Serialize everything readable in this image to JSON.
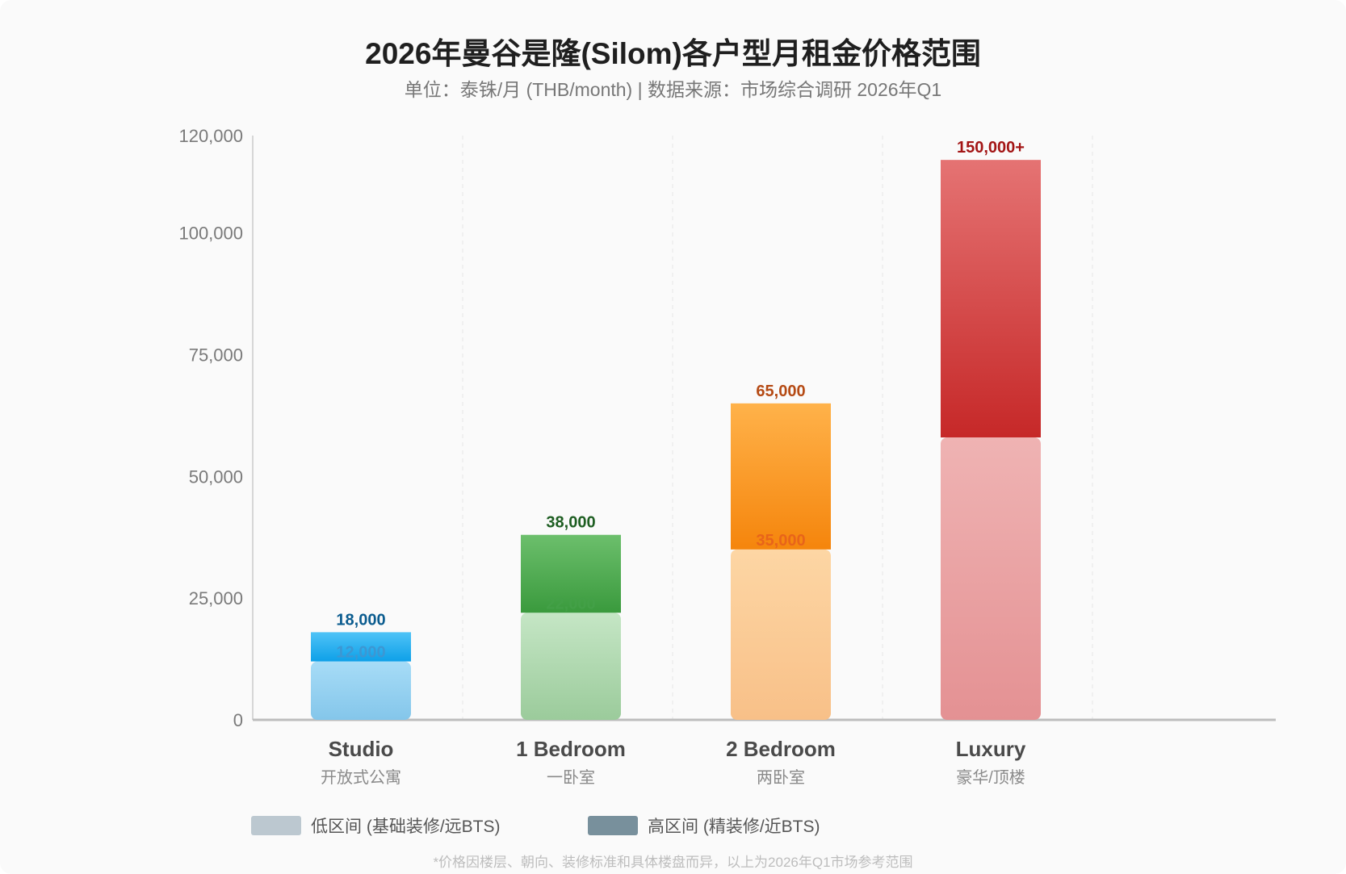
{
  "chart_data": {
    "type": "bar",
    "stacked_range": true,
    "title": "2026年曼谷是隆(Silom)各户型月租金价格范围",
    "subtitle": "单位：泰铢/月 (THB/month) | 数据来源：市场综合调研 2026年Q1",
    "xlabel": "",
    "ylabel": "",
    "ylim": [
      0,
      120000
    ],
    "yticks": [
      {
        "value": 0,
        "label": "0"
      },
      {
        "value": 25000,
        "label": "25,000"
      },
      {
        "value": 50000,
        "label": "50,000"
      },
      {
        "value": 75000,
        "label": "75,000"
      },
      {
        "value": 100000,
        "label": "100,000"
      },
      {
        "value": 120000,
        "label": "120,000"
      }
    ],
    "grid": "vertical-dashed",
    "categories": [
      {
        "name": "Studio",
        "sub": "开放式公寓",
        "low": 12000,
        "high": 18000,
        "low_label": "12,000",
        "high_label": "18,000",
        "colors": {
          "low_top": "#a7dcf7",
          "low_bottom": "#84c6ea",
          "high_top": "#4fc3f7",
          "high_bottom": "#0ea0e8",
          "high_text": "#0b5c8f",
          "low_text": "#3c97d3"
        }
      },
      {
        "name": "1 Bedroom",
        "sub": "一卧室",
        "low": 22000,
        "high": 38000,
        "low_label": "22,000",
        "high_label": "38,000",
        "colors": {
          "low_top": "#c5e6c5",
          "low_bottom": "#9bcb9b",
          "high_top": "#6cbf6c",
          "high_bottom": "#3a9a3d",
          "high_text": "#1e5e22",
          "low_text": "#43a047"
        }
      },
      {
        "name": "2 Bedroom",
        "sub": "两卧室",
        "low": 35000,
        "high": 65000,
        "low_label": "35,000",
        "high_label": "65,000",
        "colors": {
          "low_top": "#fdd6a4",
          "low_bottom": "#f8c088",
          "high_top": "#ffb24a",
          "high_bottom": "#f5850c",
          "high_text": "#b54a14",
          "low_text": "#e8641a"
        }
      },
      {
        "name": "Luxury",
        "sub": "豪华/顶楼",
        "low": 58000,
        "high": 115000,
        "low_label": "",
        "high_label": "150,000+",
        "colors": {
          "low_top": "#efb3b3",
          "low_bottom": "#e49193",
          "high_top": "#e57373",
          "high_bottom": "#c62828",
          "high_text": "#a31515",
          "low_text": "#c62828"
        }
      }
    ],
    "legend": [
      {
        "label": "低区间 (基础装修/远BTS)",
        "color": "#bcc8d0"
      },
      {
        "label": "高区间 (精装修/近BTS)",
        "color": "#78909c"
      }
    ],
    "legend_placement": "bottom-left",
    "footnote": "*价格因楼层、朝向、装修标准和具体楼盘而异，以上为2026年Q1市场参考范围"
  }
}
